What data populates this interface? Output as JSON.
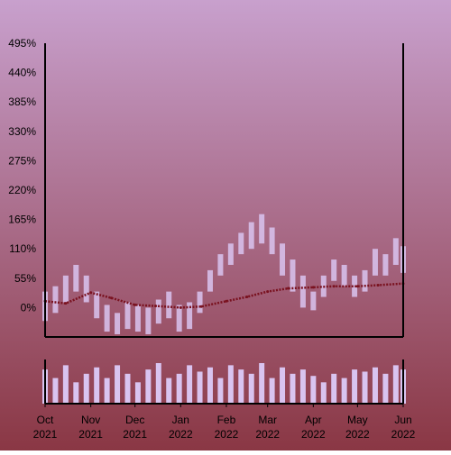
{
  "chart_data": {
    "type": "candlestick",
    "title": "",
    "xlabel": "",
    "ylabel": "",
    "ylim": [
      -55,
      495
    ],
    "y_ticks": [
      "495%",
      "440%",
      "385%",
      "330%",
      "275%",
      "220%",
      "165%",
      "110%",
      "55%",
      "0%"
    ],
    "y_tick_values": [
      495,
      440,
      385,
      330,
      275,
      220,
      165,
      110,
      55,
      0
    ],
    "x_range": [
      "2021-10-01",
      "2022-06-01"
    ],
    "x_ticks": [
      {
        "month": "Oct",
        "year": "2021",
        "date": "2021-10-01"
      },
      {
        "month": "Nov",
        "year": "2021",
        "date": "2021-11-01"
      },
      {
        "month": "Dec",
        "year": "2021",
        "date": "2021-12-01"
      },
      {
        "month": "Jan",
        "year": "2022",
        "date": "2022-01-01"
      },
      {
        "month": "Feb",
        "year": "2022",
        "date": "2022-02-01"
      },
      {
        "month": "Mar",
        "year": "2022",
        "date": "2022-03-01"
      },
      {
        "month": "Apr",
        "year": "2022",
        "date": "2022-04-01"
      },
      {
        "month": "May",
        "year": "2022",
        "date": "2022-05-01"
      },
      {
        "month": "Jun",
        "year": "2022",
        "date": "2022-06-01"
      }
    ],
    "price_series": {
      "x": [
        "2021-10-01",
        "2021-10-08",
        "2021-10-15",
        "2021-10-22",
        "2021-10-29",
        "2021-11-05",
        "2021-11-12",
        "2021-11-19",
        "2021-11-26",
        "2021-12-03",
        "2021-12-10",
        "2021-12-17",
        "2021-12-24",
        "2021-12-31",
        "2022-01-07",
        "2022-01-14",
        "2022-01-21",
        "2022-01-28",
        "2022-02-04",
        "2022-02-11",
        "2022-02-18",
        "2022-02-25",
        "2022-03-04",
        "2022-03-11",
        "2022-03-18",
        "2022-03-25",
        "2022-04-01",
        "2022-04-08",
        "2022-04-15",
        "2022-04-22",
        "2022-04-29",
        "2022-05-06",
        "2022-05-13",
        "2022-05-20",
        "2022-05-27",
        "2022-06-01"
      ],
      "high": [
        30,
        40,
        60,
        80,
        60,
        30,
        5,
        -10,
        10,
        5,
        0,
        15,
        30,
        5,
        10,
        30,
        70,
        100,
        120,
        140,
        160,
        175,
        150,
        120,
        90,
        60,
        30,
        60,
        90,
        80,
        60,
        70,
        110,
        100,
        130,
        115
      ],
      "low": [
        -25,
        -10,
        10,
        30,
        10,
        -20,
        -45,
        -50,
        -40,
        -45,
        -50,
        -30,
        -20,
        -45,
        -40,
        -10,
        30,
        60,
        80,
        100,
        110,
        120,
        100,
        60,
        30,
        0,
        -5,
        20,
        50,
        40,
        20,
        30,
        60,
        60,
        80,
        65
      ]
    },
    "moving_average": {
      "x": [
        "2021-10-01",
        "2021-10-15",
        "2021-11-01",
        "2021-11-15",
        "2021-12-01",
        "2021-12-15",
        "2022-01-01",
        "2022-01-15",
        "2022-02-01",
        "2022-02-15",
        "2022-03-01",
        "2022-03-15",
        "2022-04-01",
        "2022-04-15",
        "2022-05-01",
        "2022-05-15",
        "2022-06-01"
      ],
      "values": [
        12,
        8,
        28,
        18,
        5,
        3,
        0,
        2,
        12,
        20,
        30,
        36,
        38,
        40,
        40,
        42,
        45
      ]
    },
    "volume": {
      "x": [
        "2021-10-01",
        "2021-10-08",
        "2021-10-15",
        "2021-10-22",
        "2021-10-29",
        "2021-11-05",
        "2021-11-12",
        "2021-11-19",
        "2021-11-26",
        "2021-12-03",
        "2021-12-10",
        "2021-12-17",
        "2021-12-24",
        "2021-12-31",
        "2022-01-07",
        "2022-01-14",
        "2022-01-21",
        "2022-01-28",
        "2022-02-04",
        "2022-02-11",
        "2022-02-18",
        "2022-02-25",
        "2022-03-04",
        "2022-03-11",
        "2022-03-18",
        "2022-03-25",
        "2022-04-01",
        "2022-04-08",
        "2022-04-15",
        "2022-04-22",
        "2022-04-29",
        "2022-05-06",
        "2022-05-13",
        "2022-05-20",
        "2022-05-27",
        "2022-06-01"
      ],
      "values": [
        0.8,
        0.6,
        0.9,
        0.5,
        0.7,
        0.85,
        0.6,
        0.9,
        0.7,
        0.5,
        0.8,
        0.95,
        0.6,
        0.7,
        0.9,
        0.75,
        0.85,
        0.6,
        0.9,
        0.8,
        0.7,
        0.95,
        0.6,
        0.85,
        0.7,
        0.8,
        0.65,
        0.5,
        0.7,
        0.6,
        0.8,
        0.75,
        0.85,
        0.7,
        0.9,
        0.8
      ]
    },
    "grid": false,
    "legend": "none",
    "colors": {
      "background_top": "#c8a0cd",
      "background_bottom": "#8a3744",
      "price": "#d9c4f0",
      "moving_average": "#7a1220",
      "volume": "#d9c4f0",
      "axis": "#000000"
    }
  }
}
